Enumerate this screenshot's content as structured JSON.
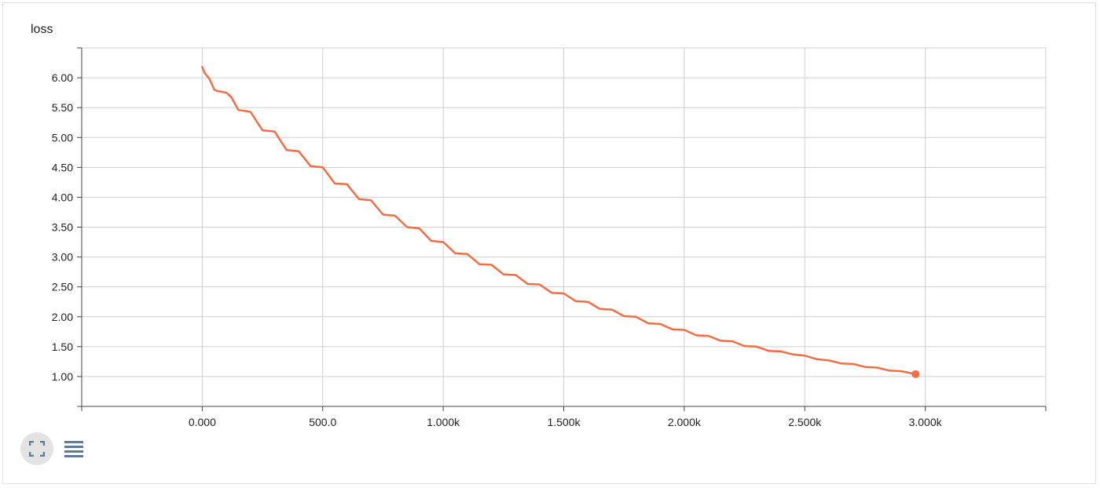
{
  "card": {
    "title": "loss"
  },
  "controls": {
    "expand_icon": "fullscreen-icon",
    "data_icon": "list-lines-icon"
  },
  "colors": {
    "series": "#f06e45",
    "grid": "#cfcfcf",
    "axis": "#444444",
    "icon": "#5f7a93"
  },
  "chart_data": {
    "type": "line",
    "title": "loss",
    "xlabel": "",
    "ylabel": "",
    "xlim": [
      -500,
      3500
    ],
    "ylim": [
      0.5,
      6.5
    ],
    "x_ticks": [
      0,
      500,
      1000,
      1500,
      2000,
      2500,
      3000
    ],
    "x_tick_labels": [
      "0.000",
      "500.0",
      "1.000k",
      "1.500k",
      "2.000k",
      "2.500k",
      "3.000k"
    ],
    "y_ticks": [
      1.0,
      1.5,
      2.0,
      2.5,
      3.0,
      3.5,
      4.0,
      4.5,
      5.0,
      5.5,
      6.0
    ],
    "y_tick_labels": [
      "1.00",
      "1.50",
      "2.00",
      "2.50",
      "3.00",
      "3.50",
      "4.00",
      "4.50",
      "5.00",
      "5.50",
      "6.00"
    ],
    "grid": true,
    "legend": "none",
    "series": [
      {
        "x": [
          0,
          10,
          30,
          50,
          60,
          100,
          120,
          150,
          200,
          250,
          300,
          350,
          400,
          450,
          500,
          550,
          600,
          650,
          700,
          750,
          800,
          850,
          900,
          950,
          1000,
          1050,
          1100,
          1150,
          1200,
          1250,
          1300,
          1350,
          1400,
          1450,
          1500,
          1550,
          1600,
          1650,
          1700,
          1750,
          1800,
          1850,
          1900,
          1950,
          2000,
          2050,
          2100,
          2150,
          2200,
          2250,
          2300,
          2350,
          2400,
          2450,
          2500,
          2550,
          2600,
          2650,
          2700,
          2750,
          2800,
          2850,
          2900,
          2960
        ],
        "y": [
          6.18,
          6.08,
          5.98,
          5.8,
          5.78,
          5.75,
          5.68,
          5.46,
          5.43,
          5.12,
          5.1,
          4.79,
          4.77,
          4.52,
          4.5,
          4.23,
          4.22,
          3.97,
          3.95,
          3.71,
          3.69,
          3.5,
          3.48,
          3.27,
          3.25,
          3.06,
          3.05,
          2.88,
          2.87,
          2.71,
          2.7,
          2.55,
          2.54,
          2.4,
          2.39,
          2.26,
          2.25,
          2.13,
          2.12,
          2.01,
          2.0,
          1.89,
          1.88,
          1.79,
          1.78,
          1.69,
          1.68,
          1.6,
          1.59,
          1.51,
          1.5,
          1.43,
          1.42,
          1.37,
          1.35,
          1.29,
          1.27,
          1.22,
          1.21,
          1.16,
          1.15,
          1.1,
          1.09,
          1.04
        ]
      }
    ]
  }
}
